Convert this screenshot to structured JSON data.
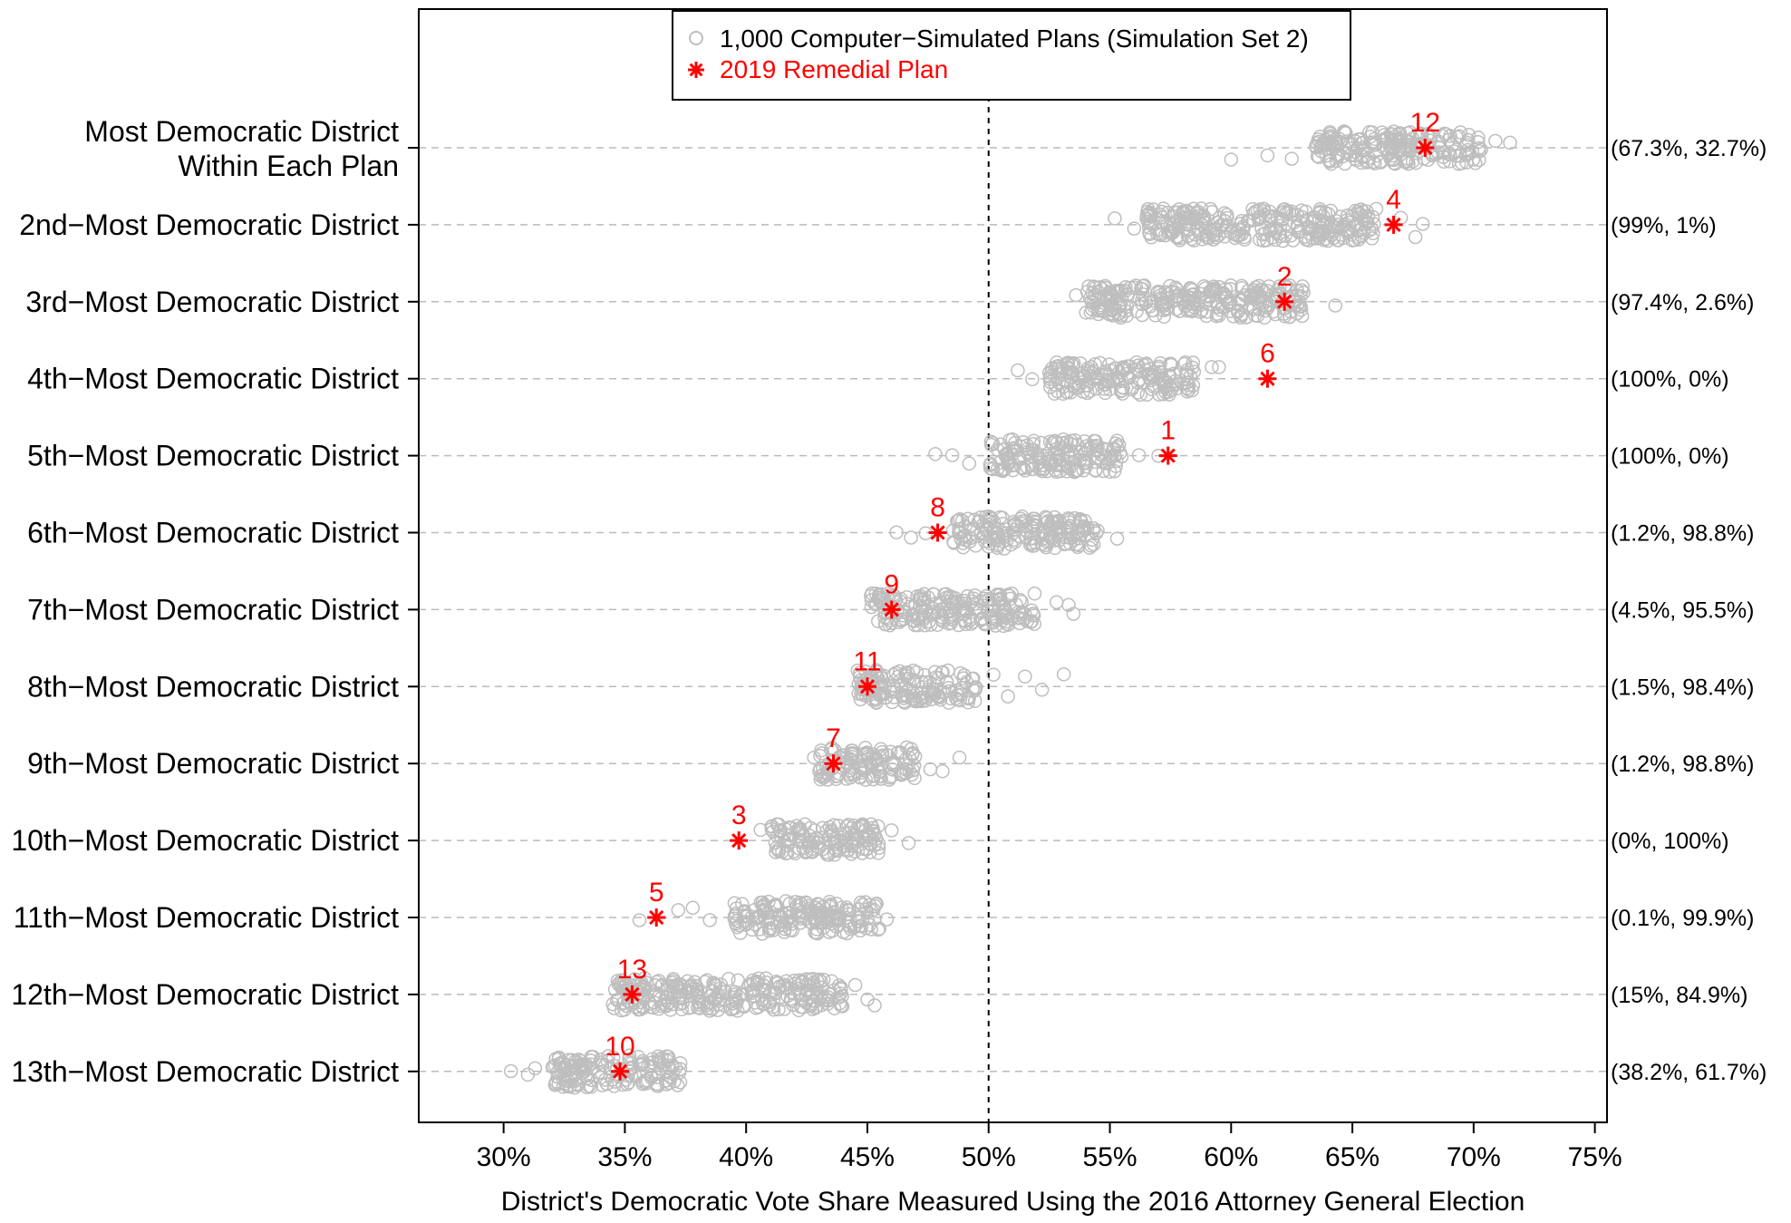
{
  "chart_data": {
    "type": "scatter",
    "xlabel": "District's Democratic Vote Share Measured Using the 2016 Attorney General Election",
    "x_ticks": [
      "30%",
      "35%",
      "40%",
      "45%",
      "50%",
      "55%",
      "60%",
      "65%",
      "70%",
      "75%"
    ],
    "xlim": [
      26.5,
      75.5
    ],
    "reference_line_x": 50,
    "legend": {
      "placement": "top",
      "entries": [
        {
          "label": "1,000 Computer−Simulated Plans (Simulation Set 2)",
          "marker": "circle",
          "color": "#bebebe"
        },
        {
          "label": "2019 Remedial Plan",
          "marker": "asterisk",
          "color": "#ff0000"
        }
      ]
    },
    "rows": [
      {
        "label": [
          "Most Democratic District",
          "Within Each Plan"
        ],
        "sim_range": [
          63.5,
          70.5
        ],
        "sim_outliers": [
          60.0,
          61.5,
          62.5,
          70.9,
          71.5
        ],
        "remedial_value": 68.0,
        "district": "12",
        "percent_label": "(67.3%, 32.7%)"
      },
      {
        "label": [
          "2nd−Most Democratic District"
        ],
        "sim_range": [
          56.5,
          66.0
        ],
        "sim_outliers": [
          55.2,
          56.0,
          67.0,
          67.6,
          67.9
        ],
        "remedial_value": 66.7,
        "district": "4",
        "percent_label": "(99%, 1%)"
      },
      {
        "label": [
          "3rd−Most Democratic District"
        ],
        "sim_range": [
          54.0,
          63.0
        ],
        "sim_outliers": [
          53.6,
          64.3
        ],
        "remedial_value": 62.2,
        "district": "2",
        "percent_label": "(97.4%, 2.6%)"
      },
      {
        "label": [
          "4th−Most Democratic District"
        ],
        "sim_range": [
          52.5,
          58.5
        ],
        "sim_outliers": [
          51.2,
          51.8,
          59.2,
          59.5
        ],
        "remedial_value": 61.5,
        "district": "6",
        "percent_label": "(100%, 0%)"
      },
      {
        "label": [
          "5th−Most Democratic District"
        ],
        "sim_range": [
          50.0,
          55.5
        ],
        "sim_outliers": [
          47.8,
          48.5,
          49.2,
          56.2,
          57.0
        ],
        "remedial_value": 57.4,
        "district": "1",
        "percent_label": "(100%, 0%)"
      },
      {
        "label": [
          "6th−Most Democratic District"
        ],
        "sim_range": [
          48.5,
          54.5
        ],
        "sim_outliers": [
          46.2,
          46.8,
          47.4,
          55.3
        ],
        "remedial_value": 47.9,
        "district": "8",
        "percent_label": "(1.2%, 98.8%)"
      },
      {
        "label": [
          "7th−Most Democratic District"
        ],
        "sim_range": [
          45.0,
          52.0
        ],
        "sim_outliers": [
          52.8,
          53.3,
          53.5
        ],
        "remedial_value": 46.0,
        "district": "9",
        "percent_label": "(4.5%, 95.5%)"
      },
      {
        "label": [
          "8th−Most Democratic District"
        ],
        "sim_range": [
          44.5,
          49.5
        ],
        "sim_outliers": [
          50.2,
          50.8,
          51.5,
          52.2,
          53.1
        ],
        "remedial_value": 45.0,
        "district": "11",
        "percent_label": "(1.5%, 98.4%)"
      },
      {
        "label": [
          "9th−Most Democratic District"
        ],
        "sim_range": [
          43.0,
          47.0
        ],
        "sim_outliers": [
          42.8,
          47.6,
          48.1,
          48.8
        ],
        "remedial_value": 43.6,
        "district": "7",
        "percent_label": "(1.2%, 98.8%)"
      },
      {
        "label": [
          "10th−Most Democratic District"
        ],
        "sim_range": [
          41.0,
          45.5
        ],
        "sim_outliers": [
          40.6,
          46.0,
          46.7
        ],
        "remedial_value": 39.7,
        "district": "3",
        "percent_label": "(0%, 100%)"
      },
      {
        "label": [
          "11th−Most Democratic District"
        ],
        "sim_range": [
          39.5,
          45.5
        ],
        "sim_outliers": [
          35.6,
          37.2,
          37.8,
          38.5,
          45.8
        ],
        "remedial_value": 36.3,
        "district": "5",
        "percent_label": "(0.1%, 99.9%)"
      },
      {
        "label": [
          "12th−Most Democratic District"
        ],
        "sim_range": [
          34.5,
          44.0
        ],
        "sim_outliers": [
          44.5,
          45.0,
          45.3
        ],
        "remedial_value": 35.3,
        "district": "13",
        "percent_label": "(15%, 84.9%)"
      },
      {
        "label": [
          "13th−Most Democratic District"
        ],
        "sim_range": [
          32.0,
          37.3
        ],
        "sim_outliers": [
          30.3,
          31.0,
          31.3
        ],
        "remedial_value": 34.8,
        "district": "10",
        "percent_label": "(38.2%, 61.7%)"
      }
    ],
    "colors": {
      "simulated": "#bebebe",
      "remedial": "#ff0000",
      "grid": "#bbbbbb"
    }
  }
}
